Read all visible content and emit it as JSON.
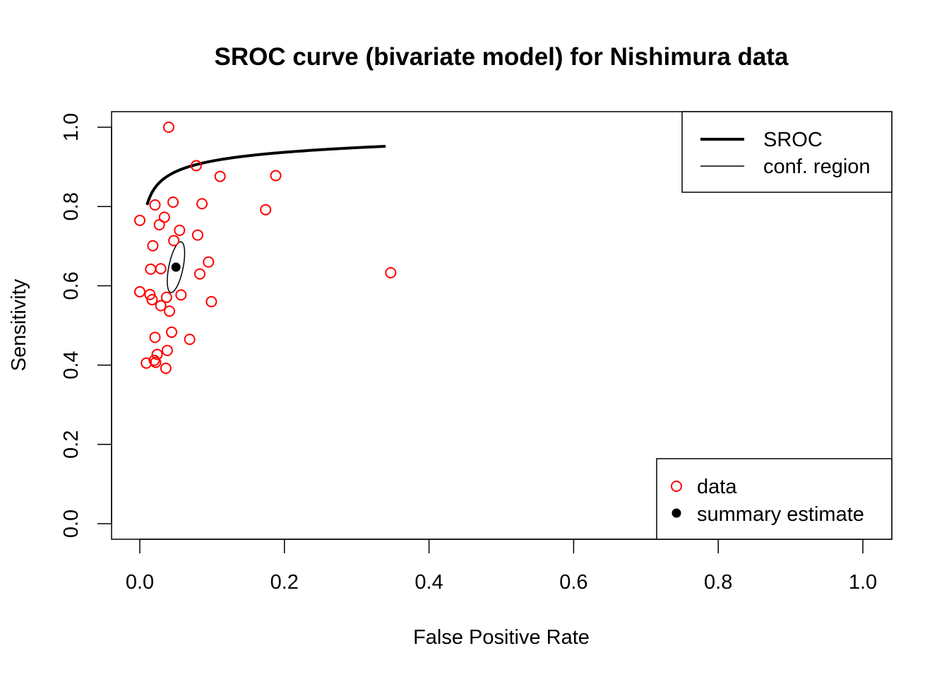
{
  "chart_data": {
    "type": "scatter",
    "title": "SROC curve (bivariate model) for Nishimura data",
    "xlabel": "False Positive Rate",
    "ylabel": "Sensitivity",
    "xlim": [
      0,
      1
    ],
    "ylim": [
      0,
      1
    ],
    "x_ticks": [
      "0.0",
      "0.2",
      "0.4",
      "0.6",
      "0.8",
      "1.0"
    ],
    "y_ticks": [
      "0.0",
      "0.2",
      "0.4",
      "0.6",
      "0.8",
      "1.0"
    ],
    "grid": false,
    "colors": {
      "data_points": "#ff0000",
      "sroc_curve": "#000000",
      "summary_estimate": "#000000",
      "confidence_region": "#000000"
    },
    "series": [
      {
        "name": "data",
        "marker": "open-circle",
        "points": [
          {
            "x": 0.04,
            "y": 1.0
          },
          {
            "x": 0.078,
            "y": 0.903
          },
          {
            "x": 0.111,
            "y": 0.876
          },
          {
            "x": 0.188,
            "y": 0.878
          },
          {
            "x": 0.021,
            "y": 0.804
          },
          {
            "x": 0.046,
            "y": 0.811
          },
          {
            "x": 0.086,
            "y": 0.807
          },
          {
            "x": 0.174,
            "y": 0.792
          },
          {
            "x": 0.0,
            "y": 0.765
          },
          {
            "x": 0.034,
            "y": 0.773
          },
          {
            "x": 0.027,
            "y": 0.754
          },
          {
            "x": 0.055,
            "y": 0.74
          },
          {
            "x": 0.08,
            "y": 0.728
          },
          {
            "x": 0.047,
            "y": 0.714
          },
          {
            "x": 0.018,
            "y": 0.701
          },
          {
            "x": 0.095,
            "y": 0.66
          },
          {
            "x": 0.015,
            "y": 0.642
          },
          {
            "x": 0.029,
            "y": 0.643
          },
          {
            "x": 0.083,
            "y": 0.63
          },
          {
            "x": 0.347,
            "y": 0.633
          },
          {
            "x": 0.0,
            "y": 0.585
          },
          {
            "x": 0.014,
            "y": 0.578
          },
          {
            "x": 0.057,
            "y": 0.577
          },
          {
            "x": 0.017,
            "y": 0.565
          },
          {
            "x": 0.037,
            "y": 0.571
          },
          {
            "x": 0.099,
            "y": 0.56
          },
          {
            "x": 0.029,
            "y": 0.55
          },
          {
            "x": 0.041,
            "y": 0.536
          },
          {
            "x": 0.044,
            "y": 0.483
          },
          {
            "x": 0.021,
            "y": 0.47
          },
          {
            "x": 0.069,
            "y": 0.465
          },
          {
            "x": 0.038,
            "y": 0.437
          },
          {
            "x": 0.024,
            "y": 0.427
          },
          {
            "x": 0.02,
            "y": 0.412
          },
          {
            "x": 0.009,
            "y": 0.405
          },
          {
            "x": 0.022,
            "y": 0.407
          },
          {
            "x": 0.036,
            "y": 0.392
          }
        ]
      },
      {
        "name": "summary estimate",
        "marker": "filled-circle",
        "points": [
          {
            "x": 0.05,
            "y": 0.647
          }
        ]
      },
      {
        "name": "SROC",
        "style": "thick-line",
        "model": {
          "alpha": 3.25,
          "beta": 0.4,
          "x_range": [
            0.01,
            0.34
          ]
        }
      },
      {
        "name": "conf. region",
        "style": "thin-line",
        "ellipse": {
          "center_x": 0.05,
          "center_y": 0.647,
          "extent_fpr": 0.012,
          "extent_sens": 0.064,
          "correlation": 0.55
        }
      }
    ],
    "legends": [
      {
        "position": "top-right",
        "entries": [
          {
            "label": "SROC",
            "symbol": "thick-line"
          },
          {
            "label": "conf. region",
            "symbol": "thin-line"
          }
        ]
      },
      {
        "position": "bottom-right",
        "entries": [
          {
            "label": "data",
            "symbol": "open-circle",
            "color": "#ff0000"
          },
          {
            "label": "summary estimate",
            "symbol": "filled-circle",
            "color": "#000000"
          }
        ]
      }
    ]
  }
}
